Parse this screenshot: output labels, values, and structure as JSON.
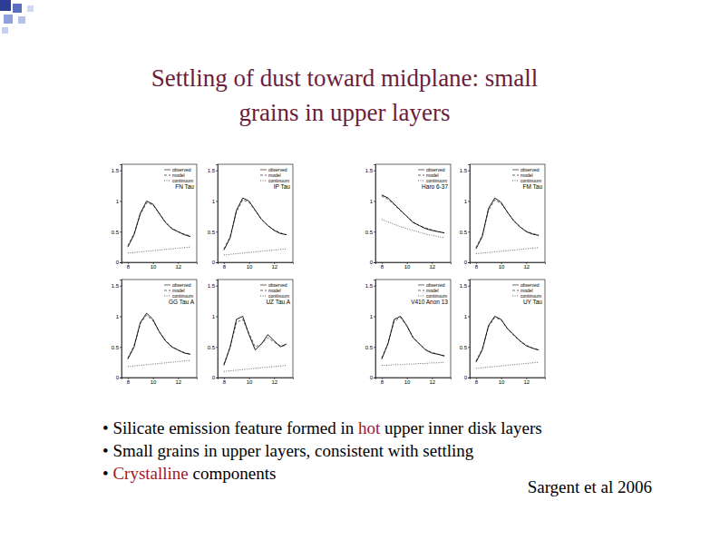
{
  "slide": {
    "title": [
      "Settling of dust toward midplane: small",
      "grains in upper layers"
    ],
    "bullets": [
      [
        {
          "text": "• Silicate emission feature formed in ",
          "color": "#000000"
        },
        {
          "text": "hot",
          "color": "#a0182a"
        },
        {
          "text": " upper inner disk layers",
          "color": "#000000"
        }
      ],
      [
        {
          "text": "• Small grains in upper layers, consistent with settling",
          "color": "#000000"
        }
      ],
      [
        {
          "text": "• ",
          "color": "#000000"
        },
        {
          "text": "Crystalline",
          "color": "#a0182a"
        },
        {
          "text": " components",
          "color": "#000000"
        }
      ]
    ],
    "citation": "Sargent et al 2006"
  },
  "chart_data": [
    {
      "type": "line",
      "title": "FN Tau",
      "x": [
        8,
        8.5,
        9,
        9.5,
        10,
        10.5,
        11,
        11.5,
        12,
        12.5,
        13
      ],
      "series": [
        {
          "name": "observed",
          "color": "#000000",
          "line_style": "solid",
          "values": [
            0.25,
            0.45,
            0.8,
            1.0,
            0.95,
            0.8,
            0.65,
            0.55,
            0.5,
            0.45,
            0.42
          ]
        },
        {
          "name": "model",
          "color": "#000000",
          "line_style": "dashed",
          "values": [
            0.27,
            0.47,
            0.78,
            0.97,
            0.94,
            0.8,
            0.66,
            0.56,
            0.5,
            0.46,
            0.43
          ]
        },
        {
          "name": "continuum",
          "color": "#000000",
          "line_style": "dotted",
          "values": [
            0.15,
            0.16,
            0.17,
            0.18,
            0.19,
            0.2,
            0.21,
            0.22,
            0.23,
            0.24,
            0.25
          ]
        }
      ],
      "xlim": [
        7.5,
        13.5
      ],
      "xticks": [
        8,
        10,
        12
      ],
      "ylim": [
        0,
        1.6
      ],
      "yticks": [
        0,
        0.5,
        1,
        1.5
      ]
    },
    {
      "type": "line",
      "title": "IP Tau",
      "x": [
        8,
        8.5,
        9,
        9.5,
        10,
        10.5,
        11,
        11.5,
        12,
        12.5,
        13
      ],
      "series": [
        {
          "name": "observed",
          "color": "#000000",
          "line_style": "solid",
          "values": [
            0.2,
            0.4,
            0.85,
            1.05,
            1.0,
            0.85,
            0.7,
            0.6,
            0.52,
            0.47,
            0.45
          ]
        },
        {
          "name": "model",
          "color": "#000000",
          "line_style": "dashed",
          "values": [
            0.22,
            0.42,
            0.82,
            1.02,
            0.98,
            0.84,
            0.7,
            0.6,
            0.53,
            0.48,
            0.45
          ]
        },
        {
          "name": "continuum",
          "color": "#000000",
          "line_style": "dotted",
          "values": [
            0.12,
            0.13,
            0.14,
            0.15,
            0.16,
            0.17,
            0.18,
            0.19,
            0.2,
            0.21,
            0.22
          ]
        }
      ],
      "xlim": [
        7.5,
        13.5
      ],
      "xticks": [
        8,
        10,
        12
      ],
      "ylim": [
        0,
        1.6
      ],
      "yticks": [
        0,
        0.5,
        1,
        1.5
      ]
    },
    {
      "type": "line",
      "title": "Haro 6-37",
      "x": [
        8,
        8.5,
        9,
        9.5,
        10,
        10.5,
        11,
        11.5,
        12,
        12.5,
        13
      ],
      "series": [
        {
          "name": "observed",
          "color": "#000000",
          "line_style": "solid",
          "values": [
            1.1,
            1.05,
            0.95,
            0.85,
            0.75,
            0.65,
            0.6,
            0.55,
            0.52,
            0.5,
            0.48
          ]
        },
        {
          "name": "model",
          "color": "#000000",
          "line_style": "dashed",
          "values": [
            1.08,
            1.03,
            0.94,
            0.84,
            0.75,
            0.66,
            0.6,
            0.56,
            0.53,
            0.5,
            0.48
          ]
        },
        {
          "name": "continuum",
          "color": "#000000",
          "line_style": "dotted",
          "values": [
            0.7,
            0.66,
            0.62,
            0.58,
            0.55,
            0.52,
            0.49,
            0.46,
            0.44,
            0.42,
            0.4
          ]
        }
      ],
      "xlim": [
        7.5,
        13.5
      ],
      "xticks": [
        8,
        10,
        12
      ],
      "ylim": [
        0,
        1.6
      ],
      "yticks": [
        0,
        0.5,
        1,
        1.5
      ]
    },
    {
      "type": "line",
      "title": "FM Tau",
      "x": [
        8,
        8.5,
        9,
        9.5,
        10,
        10.5,
        11,
        11.5,
        12,
        12.5,
        13
      ],
      "series": [
        {
          "name": "observed",
          "color": "#000000",
          "line_style": "solid",
          "values": [
            0.22,
            0.42,
            0.88,
            1.05,
            0.98,
            0.82,
            0.68,
            0.58,
            0.5,
            0.46,
            0.44
          ]
        },
        {
          "name": "model",
          "color": "#000000",
          "line_style": "dashed",
          "values": [
            0.24,
            0.44,
            0.85,
            1.02,
            0.96,
            0.82,
            0.68,
            0.58,
            0.51,
            0.47,
            0.44
          ]
        },
        {
          "name": "continuum",
          "color": "#000000",
          "line_style": "dotted",
          "values": [
            0.14,
            0.15,
            0.16,
            0.17,
            0.18,
            0.19,
            0.2,
            0.21,
            0.22,
            0.23,
            0.24
          ]
        }
      ],
      "xlim": [
        7.5,
        13.5
      ],
      "xticks": [
        8,
        10,
        12
      ],
      "ylim": [
        0,
        1.6
      ],
      "yticks": [
        0,
        0.5,
        1,
        1.5
      ]
    },
    {
      "type": "line",
      "title": "GG Tau A",
      "x": [
        8,
        8.5,
        9,
        9.5,
        10,
        10.5,
        11,
        11.5,
        12,
        12.5,
        13
      ],
      "series": [
        {
          "name": "observed",
          "color": "#000000",
          "line_style": "solid",
          "values": [
            0.3,
            0.5,
            0.9,
            1.05,
            0.95,
            0.75,
            0.6,
            0.5,
            0.45,
            0.4,
            0.38
          ]
        },
        {
          "name": "model",
          "color": "#000000",
          "line_style": "dashed",
          "values": [
            0.32,
            0.52,
            0.88,
            1.02,
            0.93,
            0.75,
            0.61,
            0.51,
            0.45,
            0.41,
            0.38
          ]
        },
        {
          "name": "continuum",
          "color": "#000000",
          "line_style": "dotted",
          "values": [
            0.18,
            0.19,
            0.2,
            0.21,
            0.22,
            0.23,
            0.24,
            0.25,
            0.26,
            0.27,
            0.28
          ]
        }
      ],
      "xlim": [
        7.5,
        13.5
      ],
      "xticks": [
        8,
        10,
        12
      ],
      "ylim": [
        0,
        1.6
      ],
      "yticks": [
        0,
        0.5,
        1,
        1.5
      ]
    },
    {
      "type": "line",
      "title": "UZ Tau A",
      "x": [
        8,
        8.5,
        9,
        9.5,
        10,
        10.5,
        11,
        11.5,
        12,
        12.5,
        13
      ],
      "series": [
        {
          "name": "observed",
          "color": "#000000",
          "line_style": "solid",
          "values": [
            0.2,
            0.5,
            0.95,
            1.0,
            0.7,
            0.45,
            0.55,
            0.7,
            0.6,
            0.5,
            0.55
          ]
        },
        {
          "name": "model",
          "color": "#000000",
          "line_style": "dashed",
          "values": [
            0.22,
            0.5,
            0.9,
            0.95,
            0.72,
            0.5,
            0.55,
            0.65,
            0.58,
            0.52,
            0.52
          ]
        },
        {
          "name": "continuum",
          "color": "#000000",
          "line_style": "dotted",
          "values": [
            0.1,
            0.11,
            0.12,
            0.13,
            0.14,
            0.15,
            0.16,
            0.17,
            0.18,
            0.19,
            0.2
          ]
        }
      ],
      "xlim": [
        7.5,
        13.5
      ],
      "xticks": [
        8,
        10,
        12
      ],
      "ylim": [
        0,
        1.6
      ],
      "yticks": [
        0,
        0.5,
        1,
        1.5
      ]
    },
    {
      "type": "line",
      "title": "V410 Anon 13",
      "x": [
        8,
        8.5,
        9,
        9.5,
        10,
        10.5,
        11,
        11.5,
        12,
        12.5,
        13
      ],
      "series": [
        {
          "name": "observed",
          "color": "#000000",
          "line_style": "solid",
          "values": [
            0.3,
            0.55,
            0.95,
            1.0,
            0.85,
            0.65,
            0.55,
            0.45,
            0.4,
            0.38,
            0.35
          ]
        },
        {
          "name": "model",
          "color": "#000000",
          "line_style": "dashed",
          "values": [
            0.32,
            0.56,
            0.92,
            0.98,
            0.84,
            0.66,
            0.55,
            0.46,
            0.41,
            0.38,
            0.36
          ]
        },
        {
          "name": "continuum",
          "color": "#000000",
          "line_style": "dotted",
          "values": [
            0.2,
            0.2,
            0.21,
            0.21,
            0.22,
            0.22,
            0.23,
            0.23,
            0.24,
            0.24,
            0.25
          ]
        }
      ],
      "xlim": [
        7.5,
        13.5
      ],
      "xticks": [
        8,
        10,
        12
      ],
      "ylim": [
        0,
        1.6
      ],
      "yticks": [
        0,
        0.5,
        1,
        1.5
      ]
    },
    {
      "type": "line",
      "title": "UY Tau",
      "x": [
        8,
        8.5,
        9,
        9.5,
        10,
        10.5,
        11,
        11.5,
        12,
        12.5,
        13
      ],
      "series": [
        {
          "name": "observed",
          "color": "#000000",
          "line_style": "solid",
          "values": [
            0.25,
            0.45,
            0.85,
            1.0,
            0.95,
            0.8,
            0.7,
            0.6,
            0.52,
            0.48,
            0.45
          ]
        },
        {
          "name": "model",
          "color": "#000000",
          "line_style": "dashed",
          "values": [
            0.27,
            0.47,
            0.83,
            0.98,
            0.94,
            0.8,
            0.69,
            0.6,
            0.53,
            0.48,
            0.45
          ]
        },
        {
          "name": "continuum",
          "color": "#000000",
          "line_style": "dotted",
          "values": [
            0.15,
            0.16,
            0.17,
            0.18,
            0.19,
            0.2,
            0.21,
            0.22,
            0.23,
            0.24,
            0.25
          ]
        }
      ],
      "xlim": [
        7.5,
        13.5
      ],
      "xticks": [
        8,
        10,
        12
      ],
      "ylim": [
        0,
        1.6
      ],
      "yticks": [
        0,
        0.5,
        1,
        1.5
      ]
    }
  ]
}
